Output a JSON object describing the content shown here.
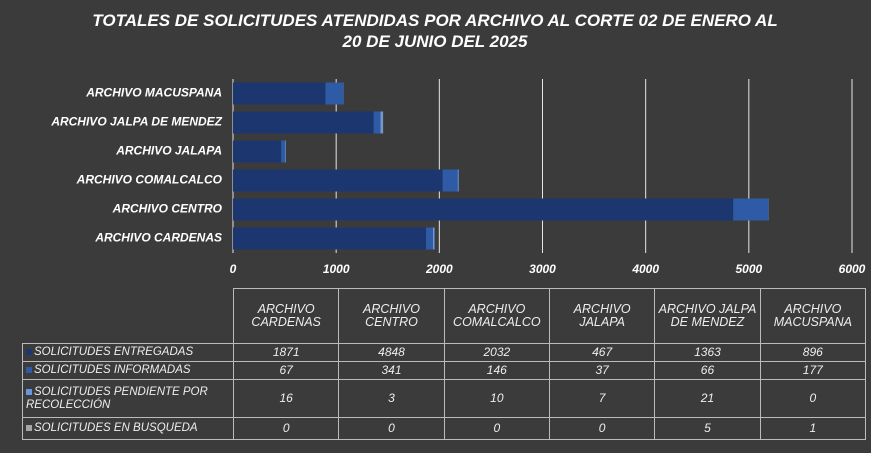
{
  "chart_data": {
    "type": "bar",
    "orientation": "horizontal",
    "stacked": true,
    "title": "TOTALES DE SOLICITUDES ATENDIDAS POR ARCHIVO AL CORTE 02 DE ENERO AL 20 DE JUNIO DEL 2025",
    "categories": [
      "ARCHIVO CARDENAS",
      "ARCHIVO CENTRO",
      "ARCHIVO COMALCALCO",
      "ARCHIVO JALAPA",
      "ARCHIVO JALPA DE MENDEZ",
      "ARCHIVO MACUSPANA"
    ],
    "series": [
      {
        "name": "SOLICITUDES ENTREGADAS",
        "color": "#1c3670",
        "values": [
          1871,
          4848,
          2032,
          467,
          1363,
          896
        ]
      },
      {
        "name": "SOLICITUDES INFORMADAS",
        "color": "#2f5aa6",
        "values": [
          67,
          341,
          146,
          37,
          66,
          177
        ]
      },
      {
        "name": "SOLICITUDES PENDIENTE POR RECOLECCIÓN",
        "color": "#6a96dc",
        "values": [
          16,
          3,
          10,
          7,
          21,
          0
        ]
      },
      {
        "name": "SOLICITUDES EN BUSQUEDA",
        "color": "#a6a6a6",
        "values": [
          0,
          0,
          0,
          0,
          5,
          1
        ]
      }
    ],
    "xlim": [
      0,
      6000
    ],
    "xticks": [
      0,
      1000,
      2000,
      3000,
      4000,
      5000,
      6000
    ],
    "grid": true
  }
}
